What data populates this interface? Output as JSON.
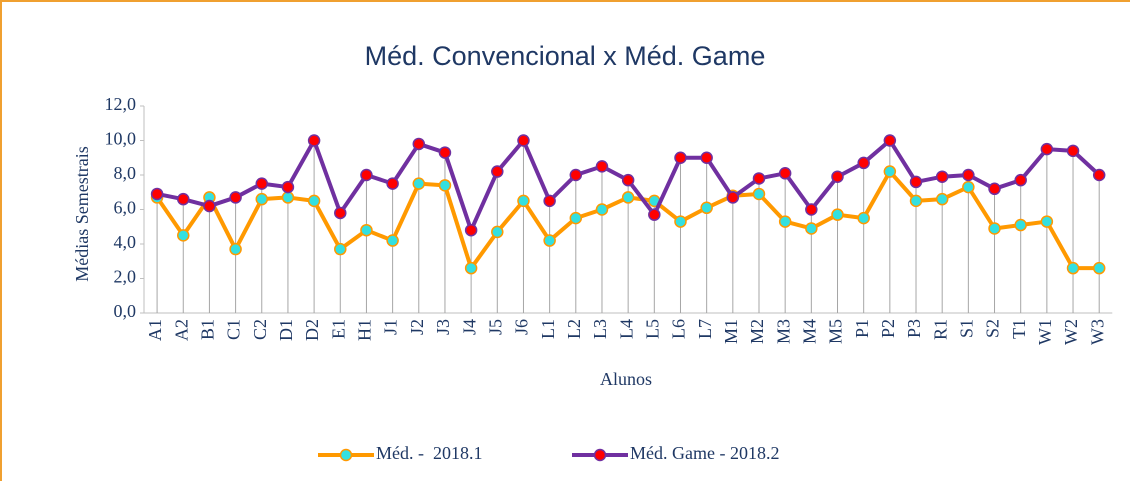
{
  "chart_data": {
    "type": "line",
    "title": "Méd. Convencional x Méd. Game",
    "x_label": "Alunos",
    "y_label": "Médias Semestrais",
    "categories": [
      "A1",
      "A2",
      "B1",
      "C1",
      "C2",
      "D1",
      "D2",
      "E1",
      "H1",
      "J1",
      "J2",
      "J3",
      "J4",
      "J5",
      "J6",
      "L1",
      "L2",
      "L3",
      "L4",
      "L5",
      "L6",
      "L7",
      "M1",
      "M2",
      "M3",
      "M4",
      "M5",
      "P1",
      "P2",
      "P3",
      "R1",
      "S1",
      "S2",
      "T1",
      "W1",
      "W2",
      "W3"
    ],
    "series": [
      {
        "name": "Méd. -  2018.1",
        "color": "#ff9900",
        "marker_color": "#33e0e0",
        "values": [
          6.7,
          4.5,
          6.7,
          3.7,
          6.6,
          6.7,
          6.5,
          3.7,
          4.8,
          4.2,
          7.5,
          7.4,
          2.6,
          4.7,
          6.5,
          4.2,
          5.5,
          6.0,
          6.7,
          6.5,
          5.3,
          6.1,
          6.8,
          6.9,
          5.3,
          4.9,
          5.7,
          5.5,
          8.2,
          6.5,
          6.6,
          7.3,
          4.9,
          5.1,
          5.3,
          2.6,
          2.6
        ]
      },
      {
        "name": "Méd. Game - 2018.2",
        "color": "#7030a0",
        "marker_color": "#ff0000",
        "values": [
          6.9,
          6.6,
          6.2,
          6.7,
          7.5,
          7.3,
          10.0,
          5.8,
          8.0,
          7.5,
          9.8,
          9.3,
          4.8,
          8.2,
          10.0,
          6.5,
          8.0,
          8.5,
          7.7,
          5.7,
          9.0,
          9.0,
          6.7,
          7.8,
          8.1,
          6.0,
          7.9,
          8.7,
          10.0,
          7.6,
          7.9,
          8.0,
          7.2,
          7.7,
          9.5,
          9.4,
          8.0
        ]
      }
    ],
    "ylim": [
      0,
      12
    ],
    "yticks": [
      {
        "value": 0,
        "label": "0,0"
      },
      {
        "value": 2,
        "label": "2,0"
      },
      {
        "value": 4,
        "label": "4,0"
      },
      {
        "value": 6,
        "label": "6,0"
      },
      {
        "value": 8,
        "label": "8,0"
      },
      {
        "value": 10,
        "label": "10,0"
      },
      {
        "value": 12,
        "label": "12,0"
      }
    ],
    "drop_lines": true
  }
}
